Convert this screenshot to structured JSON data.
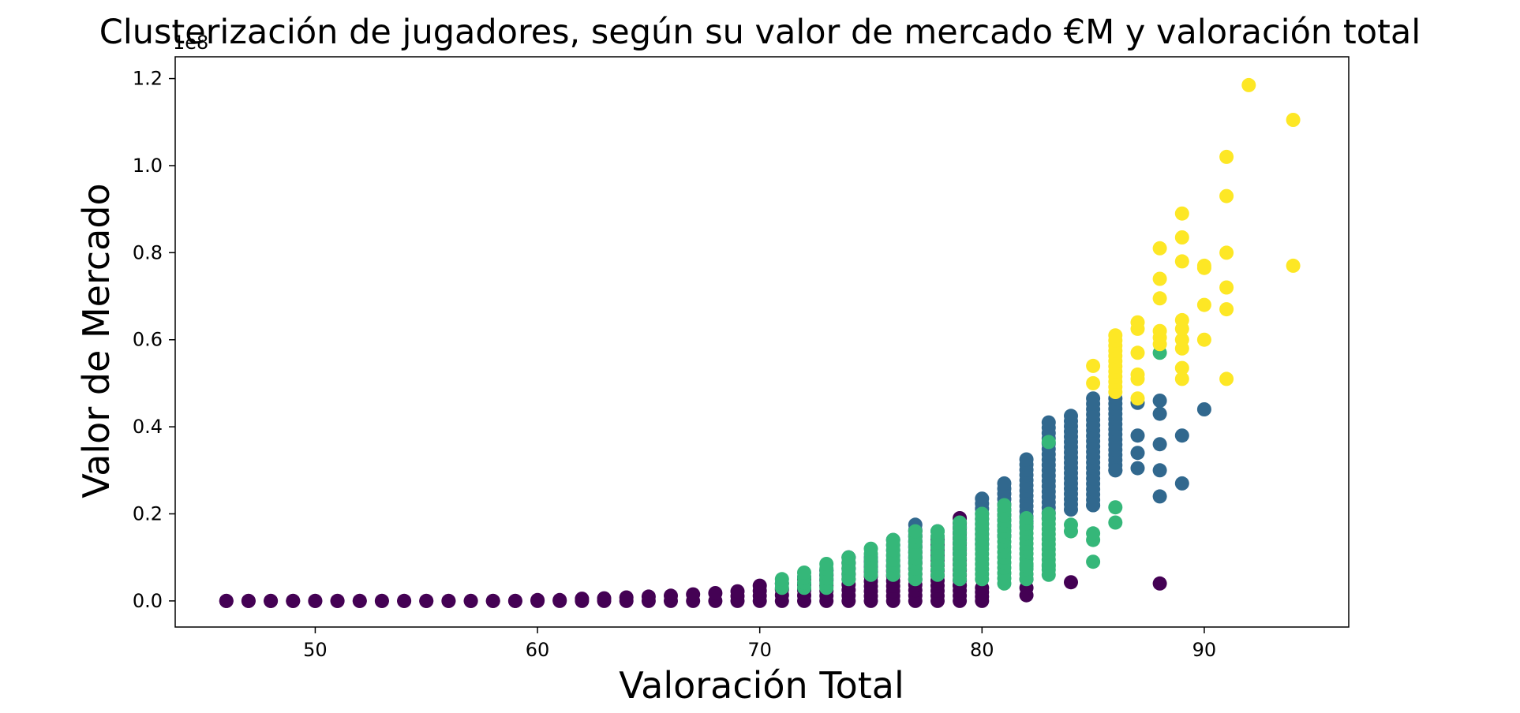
{
  "chart_data": {
    "type": "scatter",
    "title": "Clusterización de jugadores, según su valor de mercado €M y valoración total",
    "xlabel": "Valoración Total",
    "ylabel": "Valor de Mercado",
    "y_offset_label": "1e8",
    "xlim": [
      43.7,
      96.5
    ],
    "ylim": [
      -0.06,
      1.25
    ],
    "x_ticks": [
      50,
      60,
      70,
      80,
      90
    ],
    "y_ticks": [
      0.0,
      0.2,
      0.4,
      0.6,
      0.8,
      1.0,
      1.2
    ],
    "x_tick_labels": [
      "50",
      "60",
      "70",
      "80",
      "90"
    ],
    "y_tick_labels": [
      "0.0",
      "0.2",
      "0.4",
      "0.6",
      "0.8",
      "1.0",
      "1.2"
    ],
    "y_unit_note": "values in units of 1e8",
    "grid": false,
    "legend": "none",
    "series": [
      {
        "color": "#440154",
        "columns": [
          [
            46,
            0.0,
            0.0
          ],
          [
            47,
            0.0,
            0.0
          ],
          [
            48,
            0.0,
            0.0
          ],
          [
            49,
            0.0,
            0.0
          ],
          [
            50,
            0.0,
            0.0
          ],
          [
            51,
            0.0,
            0.0
          ],
          [
            52,
            0.0,
            0.0
          ],
          [
            53,
            0.0,
            0.0
          ],
          [
            54,
            0.0,
            0.0
          ],
          [
            55,
            0.0,
            0.0
          ],
          [
            56,
            0.0,
            0.0
          ],
          [
            57,
            0.0,
            0.0
          ],
          [
            58,
            0.0,
            0.0
          ],
          [
            59,
            0.0,
            0.0
          ],
          [
            60,
            0.0,
            0.002
          ],
          [
            61,
            0.0,
            0.002
          ],
          [
            62,
            0.0,
            0.005
          ],
          [
            63,
            0.0,
            0.006
          ],
          [
            64,
            0.0,
            0.008
          ],
          [
            65,
            0.0,
            0.01
          ],
          [
            66,
            0.0,
            0.012
          ],
          [
            67,
            0.0,
            0.015
          ],
          [
            68,
            0.0,
            0.018
          ],
          [
            69,
            0.0,
            0.022
          ],
          [
            70,
            0.0,
            0.035
          ],
          [
            71,
            0.0,
            0.04
          ],
          [
            72,
            0.0,
            0.05
          ],
          [
            73,
            0.0,
            0.07
          ],
          [
            74,
            0.0,
            0.1
          ],
          [
            75,
            0.0,
            0.09
          ],
          [
            76,
            0.0,
            0.08
          ],
          [
            77,
            0.0,
            0.16
          ],
          [
            78,
            0.0,
            0.14
          ],
          [
            79,
            0.0,
            0.19
          ],
          [
            80,
            0.0,
            0.03
          ]
        ],
        "points": [
          [
            79,
            0.035
          ],
          [
            82,
            0.013
          ],
          [
            82,
            0.03
          ],
          [
            82,
            0.05
          ],
          [
            84,
            0.043
          ],
          [
            88,
            0.04
          ]
        ]
      },
      {
        "color": "#31688e",
        "columns": [
          [
            72,
            0.04,
            0.055
          ],
          [
            73,
            0.05,
            0.07
          ],
          [
            74,
            0.06,
            0.1
          ],
          [
            75,
            0.07,
            0.1
          ],
          [
            76,
            0.08,
            0.14
          ],
          [
            77,
            0.09,
            0.175
          ],
          [
            78,
            0.1,
            0.16
          ],
          [
            79,
            0.11,
            0.17
          ],
          [
            80,
            0.13,
            0.235
          ],
          [
            81,
            0.15,
            0.27
          ],
          [
            82,
            0.17,
            0.325
          ],
          [
            83,
            0.19,
            0.41
          ],
          [
            84,
            0.21,
            0.425
          ],
          [
            85,
            0.22,
            0.465
          ],
          [
            86,
            0.3,
            0.465
          ]
        ],
        "points": [
          [
            85,
            0.22
          ],
          [
            86,
            0.3
          ],
          [
            87,
            0.305
          ],
          [
            87,
            0.34
          ],
          [
            87,
            0.38
          ],
          [
            87,
            0.455
          ],
          [
            88,
            0.24
          ],
          [
            88,
            0.3
          ],
          [
            88,
            0.36
          ],
          [
            88,
            0.43
          ],
          [
            88,
            0.46
          ],
          [
            89,
            0.27
          ],
          [
            89,
            0.38
          ],
          [
            90,
            0.44
          ]
        ]
      },
      {
        "color": "#35b779",
        "columns": [
          [
            71,
            0.03,
            0.05
          ],
          [
            72,
            0.03,
            0.065
          ],
          [
            73,
            0.03,
            0.085
          ],
          [
            74,
            0.05,
            0.1
          ],
          [
            75,
            0.06,
            0.12
          ],
          [
            76,
            0.06,
            0.14
          ],
          [
            77,
            0.05,
            0.16
          ],
          [
            78,
            0.06,
            0.16
          ],
          [
            79,
            0.05,
            0.18
          ],
          [
            80,
            0.05,
            0.2
          ],
          [
            81,
            0.04,
            0.22
          ],
          [
            82,
            0.05,
            0.19
          ],
          [
            83,
            0.06,
            0.2
          ]
        ],
        "points": [
          [
            82,
            0.08
          ],
          [
            83,
            0.08
          ],
          [
            83,
            0.365
          ],
          [
            84,
            0.16
          ],
          [
            84,
            0.175
          ],
          [
            85,
            0.09
          ],
          [
            85,
            0.14
          ],
          [
            85,
            0.155
          ],
          [
            86,
            0.18
          ],
          [
            86,
            0.215
          ],
          [
            88,
            0.57
          ]
        ]
      },
      {
        "color": "#fde725",
        "columns": [
          [
            86,
            0.48,
            0.61
          ]
        ],
        "points": [
          [
            85,
            0.5
          ],
          [
            85,
            0.54
          ],
          [
            87,
            0.465
          ],
          [
            87,
            0.51
          ],
          [
            87,
            0.52
          ],
          [
            87,
            0.57
          ],
          [
            87,
            0.625
          ],
          [
            87,
            0.64
          ],
          [
            88,
            0.59
          ],
          [
            88,
            0.605
          ],
          [
            88,
            0.62
          ],
          [
            88,
            0.695
          ],
          [
            88,
            0.74
          ],
          [
            88,
            0.81
          ],
          [
            89,
            0.51
          ],
          [
            89,
            0.535
          ],
          [
            89,
            0.58
          ],
          [
            89,
            0.6
          ],
          [
            89,
            0.625
          ],
          [
            89,
            0.645
          ],
          [
            89,
            0.78
          ],
          [
            89,
            0.835
          ],
          [
            89,
            0.89
          ],
          [
            90,
            0.6
          ],
          [
            90,
            0.68
          ],
          [
            90,
            0.765
          ],
          [
            90,
            0.77
          ],
          [
            91,
            0.51
          ],
          [
            91,
            0.67
          ],
          [
            91,
            0.72
          ],
          [
            91,
            0.8
          ],
          [
            91,
            0.93
          ],
          [
            91,
            1.02
          ],
          [
            92,
            1.185
          ],
          [
            94,
            0.77
          ],
          [
            94,
            1.105
          ]
        ]
      }
    ]
  }
}
